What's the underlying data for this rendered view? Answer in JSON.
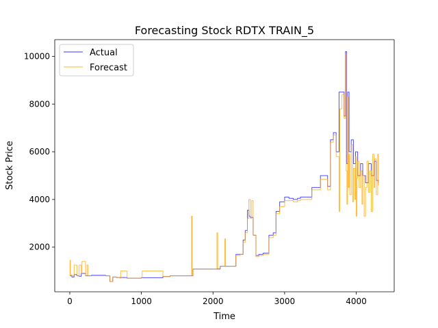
{
  "chart_data": {
    "type": "line",
    "title": "Forecasting Stock RDTX TRAIN_5",
    "xlabel": "Time",
    "ylabel": "Stock Price",
    "xlim": [
      -210,
      4530
    ],
    "ylim": [
      130,
      10700
    ],
    "xticks": [
      0,
      1000,
      2000,
      3000,
      4000
    ],
    "xtick_labels": [
      "0",
      "1000",
      "2000",
      "3000",
      "4000"
    ],
    "yticks": [
      2000,
      4000,
      6000,
      8000,
      10000
    ],
    "ytick_labels": [
      "2000",
      "4000",
      "6000",
      "8000",
      "10000"
    ],
    "grid": false,
    "legend": {
      "position": "top-left",
      "entries": [
        "Actual",
        "Forecast"
      ]
    },
    "series": [
      {
        "name": "Actual",
        "color": "#0000ff",
        "x": [
          0,
          30,
          60,
          100,
          130,
          160,
          220,
          300,
          500,
          560,
          600,
          650,
          800,
          1000,
          1300,
          1400,
          1690,
          1720,
          2000,
          2100,
          2160,
          2320,
          2380,
          2420,
          2450,
          2480,
          2500,
          2520,
          2560,
          2600,
          2640,
          2700,
          2780,
          2840,
          2880,
          2930,
          3000,
          3060,
          3120,
          3180,
          3220,
          3300,
          3380,
          3450,
          3500,
          3560,
          3600,
          3640,
          3680,
          3720,
          3760,
          3800,
          3830,
          3850,
          3865,
          3880,
          3900,
          3930,
          3960,
          3990,
          4020,
          4060,
          4090,
          4130,
          4170,
          4210,
          4250,
          4280,
          4310
        ],
        "y": [
          800,
          750,
          850,
          800,
          780,
          900,
          800,
          820,
          800,
          560,
          750,
          730,
          700,
          720,
          770,
          800,
          800,
          1080,
          1080,
          1200,
          1200,
          1700,
          1700,
          2300,
          2700,
          3550,
          3300,
          3250,
          2500,
          1650,
          1700,
          1750,
          2500,
          2600,
          3500,
          3900,
          4100,
          4050,
          4000,
          4050,
          4100,
          4100,
          4500,
          4500,
          5000,
          5000,
          4550,
          6500,
          6800,
          6000,
          8500,
          8500,
          7500,
          10200,
          5500,
          8500,
          6000,
          6500,
          5500,
          6000,
          5000,
          5500,
          5000,
          4700,
          5500,
          5000,
          5600,
          4800,
          4700
        ]
      },
      {
        "name": "Forecast",
        "color": "#ffa500",
        "x": [
          0,
          3,
          10,
          30,
          60,
          100,
          130,
          160,
          170,
          220,
          240,
          255,
          300,
          500,
          560,
          600,
          650,
          700,
          710,
          800,
          1000,
          1010,
          1300,
          1400,
          1690,
          1700,
          1710,
          1720,
          2000,
          2050,
          2055,
          2065,
          2100,
          2160,
          2165,
          2175,
          2320,
          2380,
          2420,
          2450,
          2480,
          2500,
          2520,
          2540,
          2560,
          2600,
          2640,
          2700,
          2780,
          2840,
          2880,
          2930,
          3000,
          3060,
          3120,
          3180,
          3220,
          3300,
          3380,
          3450,
          3500,
          3560,
          3600,
          3640,
          3680,
          3720,
          3760,
          3770,
          3800,
          3830,
          3850,
          3860,
          3870,
          3880,
          3890,
          3900,
          3910,
          3930,
          3950,
          3960,
          3980,
          3990,
          4000,
          4010,
          4020,
          4040,
          4060,
          4080,
          4090,
          4110,
          4130,
          4150,
          4170,
          4190,
          4210,
          4230,
          4250,
          4260,
          4280,
          4300,
          4310
        ],
        "y": [
          800,
          1450,
          850,
          800,
          1250,
          800,
          1250,
          900,
          1400,
          800,
          1250,
          800,
          800,
          800,
          560,
          750,
          730,
          700,
          1000,
          700,
          720,
          1000,
          770,
          800,
          800,
          3300,
          800,
          1080,
          1080,
          1100,
          2600,
          1100,
          1200,
          1200,
          2350,
          1200,
          1650,
          1700,
          2200,
          2600,
          3200,
          4000,
          3200,
          3950,
          2500,
          1600,
          1650,
          1700,
          2400,
          2500,
          3400,
          3700,
          3950,
          3950,
          3900,
          3950,
          4000,
          4000,
          4400,
          4400,
          4850,
          4850,
          4400,
          6400,
          6700,
          5800,
          3500,
          7800,
          8400,
          7400,
          10100,
          5200,
          3800,
          8300,
          4500,
          5900,
          4200,
          6300,
          3900,
          5300,
          4000,
          5800,
          3300,
          4900,
          5600,
          4500,
          5200,
          3800,
          5000,
          3300,
          4500,
          5600,
          4300,
          5200,
          3500,
          5900,
          4500,
          5700,
          4200,
          5900,
          4600
        ]
      }
    ]
  }
}
